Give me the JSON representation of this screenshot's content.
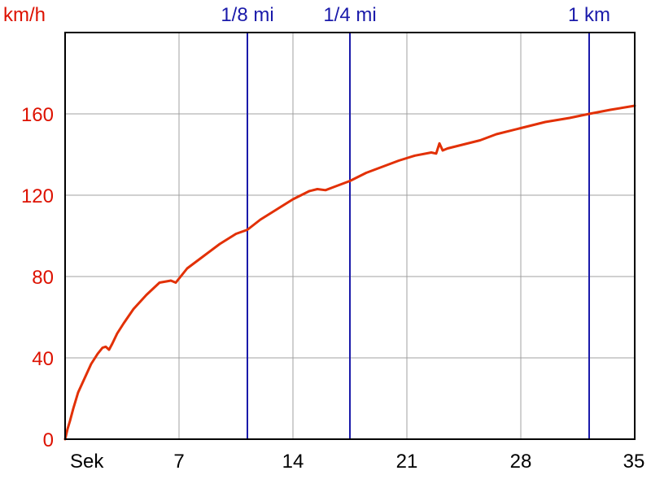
{
  "chart_data": {
    "type": "line",
    "ylabel": "km/h",
    "xlabel": "Sek",
    "xlim": [
      0,
      35
    ],
    "ylim": [
      0,
      200
    ],
    "x_ticks": [
      7,
      14,
      21,
      28,
      35
    ],
    "y_ticks": [
      0,
      40,
      80,
      120,
      160
    ],
    "grid": true,
    "markers": [
      {
        "label": "1/8 mi",
        "x": 11.2
      },
      {
        "label": "1/4 mi",
        "x": 17.5
      },
      {
        "label": "1 km",
        "x": 32.2
      }
    ],
    "series": [
      {
        "x": [
          0,
          0.15,
          0.3,
          0.5,
          0.8,
          1.2,
          1.6,
          2.0,
          2.3,
          2.5,
          2.7,
          2.9,
          3.2,
          3.6,
          4.2,
          5.0,
          5.8,
          6.5,
          6.8,
          7.0,
          7.5,
          8.5,
          9.5,
          10.5,
          11.2,
          12.0,
          13.0,
          14.0,
          15.0,
          15.5,
          16.0,
          16.5,
          17.5,
          18.5,
          19.5,
          20.5,
          21.5,
          22.5,
          22.8,
          23.0,
          23.2,
          23.5,
          24.5,
          25.5,
          26.5,
          28.0,
          29.5,
          31.0,
          32.2,
          33.5,
          35.0
        ],
        "values": [
          0,
          5,
          9,
          15,
          23,
          30,
          37,
          42,
          45,
          45.5,
          44,
          47,
          52,
          57,
          64,
          71,
          77,
          78,
          77,
          79,
          84,
          90,
          96,
          101,
          103,
          108,
          113,
          118,
          122,
          123,
          122.5,
          124,
          127,
          131,
          134,
          137,
          139.5,
          141,
          140.5,
          145.5,
          142,
          143,
          145,
          147,
          150,
          153,
          156,
          158,
          160,
          162,
          164
        ]
      }
    ]
  },
  "colors": {
    "axis_text_y": "#dd1100",
    "marker": "#1a1aaa",
    "series": "#e23005",
    "grid": "#a0a0a0"
  }
}
